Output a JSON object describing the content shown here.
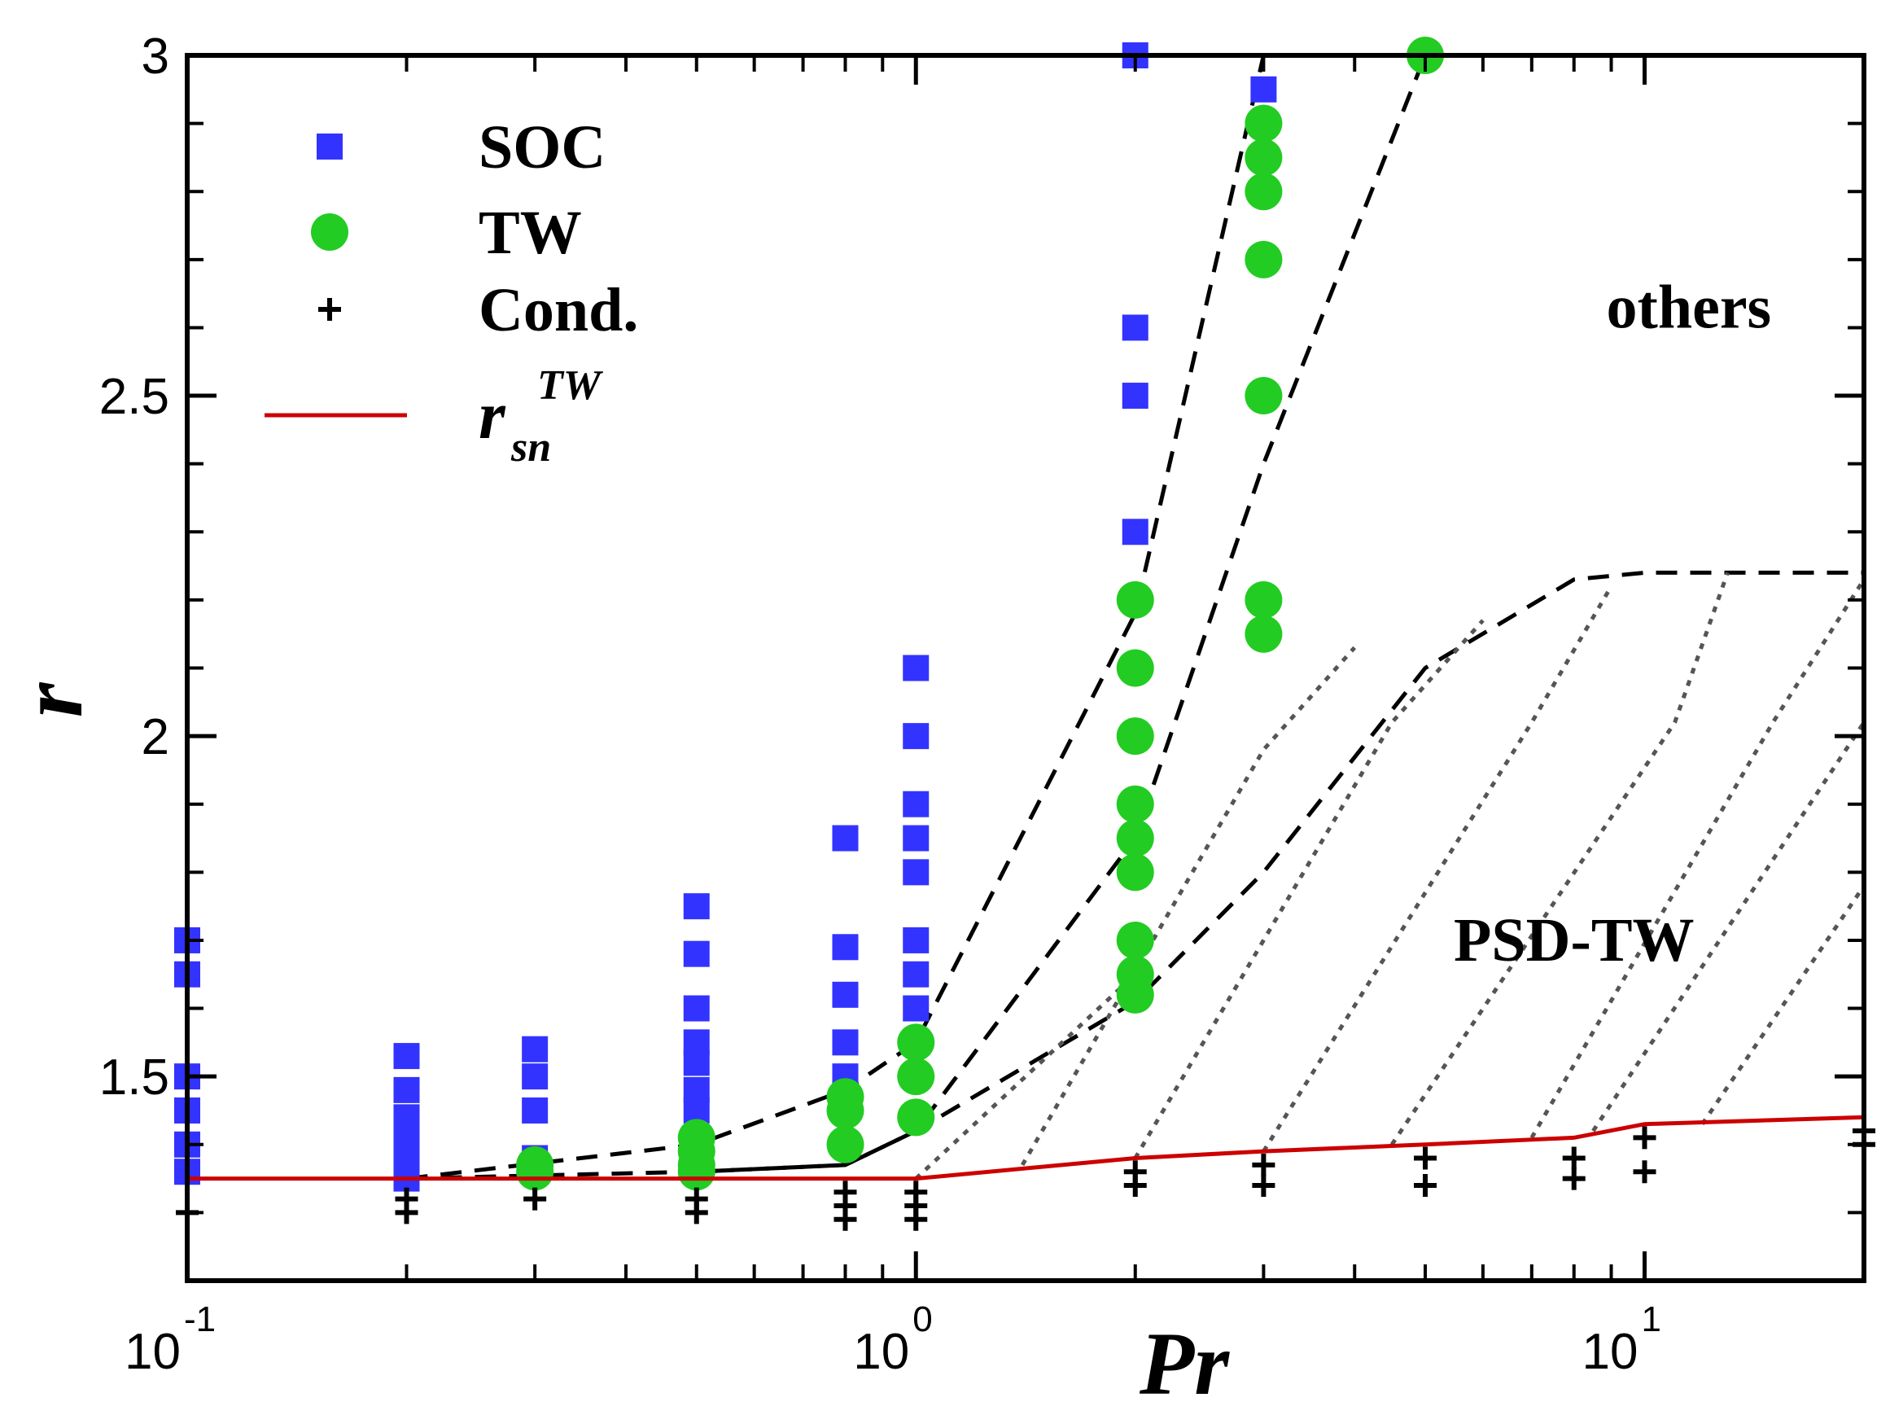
{
  "chart_data": {
    "type": "scatter",
    "title": "",
    "xlabel": "Pr",
    "ylabel": "r",
    "x_scale": "log",
    "xlim": [
      0.1,
      20
    ],
    "ylim": [
      1.2,
      3.0
    ],
    "x_ticks": [
      {
        "value": 0.1,
        "base": "10",
        "exp": "-1"
      },
      {
        "value": 1,
        "base": "10",
        "exp": "0"
      },
      {
        "value": 10,
        "base": "10",
        "exp": "1"
      }
    ],
    "y_ticks": [
      {
        "value": 1.5,
        "label": "1.5"
      },
      {
        "value": 2.0,
        "label": "2"
      },
      {
        "value": 2.5,
        "label": "2.5"
      },
      {
        "value": 3.0,
        "label": "3"
      }
    ],
    "y_minor_ticks": [
      1.3,
      1.4,
      1.6,
      1.7,
      1.8,
      1.9,
      2.1,
      2.2,
      2.3,
      2.4,
      2.6,
      2.7,
      2.8,
      2.9
    ],
    "x_minor_ticks": [
      0.2,
      0.3,
      0.4,
      0.5,
      0.6,
      0.7,
      0.8,
      0.9,
      2,
      3,
      4,
      5,
      6,
      7,
      8,
      9
    ],
    "grid": false,
    "legend_position": "top-left",
    "legend": [
      {
        "key": "soc",
        "label": "SOC",
        "marker": "square",
        "color": "#3333ff"
      },
      {
        "key": "tw",
        "label": "TW",
        "marker": "circle",
        "color": "#22cc22"
      },
      {
        "key": "cond",
        "label": "Cond.",
        "marker": "plus",
        "color": "#000000"
      },
      {
        "key": "rsn",
        "label_base": "r",
        "label_sub": "sn",
        "label_sup": "TW",
        "marker": "line",
        "color": "#cc0000"
      }
    ],
    "annotations": [
      {
        "text": "others",
        "x": 11.5,
        "y": 2.6
      },
      {
        "text": "PSD-TW",
        "x": 8.0,
        "y": 1.67
      }
    ],
    "series": [
      {
        "name": "SOC",
        "key": "soc",
        "marker": "square",
        "color": "#3333ff",
        "points": [
          [
            0.1,
            1.7
          ],
          [
            0.1,
            1.65
          ],
          [
            0.1,
            1.5
          ],
          [
            0.1,
            1.45
          ],
          [
            0.1,
            1.4
          ],
          [
            0.1,
            1.36
          ],
          [
            0.2,
            1.53
          ],
          [
            0.2,
            1.48
          ],
          [
            0.2,
            1.44
          ],
          [
            0.2,
            1.41
          ],
          [
            0.2,
            1.38
          ],
          [
            0.2,
            1.35
          ],
          [
            0.3,
            1.54
          ],
          [
            0.3,
            1.5
          ],
          [
            0.3,
            1.45
          ],
          [
            0.3,
            1.38
          ],
          [
            0.5,
            1.75
          ],
          [
            0.5,
            1.68
          ],
          [
            0.5,
            1.6
          ],
          [
            0.5,
            1.55
          ],
          [
            0.5,
            1.52
          ],
          [
            0.5,
            1.48
          ],
          [
            0.5,
            1.45
          ],
          [
            0.5,
            1.4
          ],
          [
            0.8,
            1.85
          ],
          [
            0.8,
            1.69
          ],
          [
            0.8,
            1.62
          ],
          [
            0.8,
            1.55
          ],
          [
            0.8,
            1.5
          ],
          [
            0.8,
            1.45
          ],
          [
            1.0,
            2.1
          ],
          [
            1.0,
            2.0
          ],
          [
            1.0,
            1.9
          ],
          [
            1.0,
            1.85
          ],
          [
            1.0,
            1.8
          ],
          [
            1.0,
            1.7
          ],
          [
            1.0,
            1.65
          ],
          [
            1.0,
            1.6
          ],
          [
            1.0,
            1.55
          ],
          [
            2.0,
            3.0
          ],
          [
            2.0,
            2.6
          ],
          [
            2.0,
            2.5
          ],
          [
            2.0,
            2.3
          ],
          [
            3.0,
            2.95
          ]
        ]
      },
      {
        "name": "TW",
        "key": "tw",
        "marker": "circle",
        "color": "#22cc22",
        "points": [
          [
            0.3,
            1.37
          ],
          [
            0.3,
            1.36
          ],
          [
            0.5,
            1.41
          ],
          [
            0.5,
            1.39
          ],
          [
            0.5,
            1.37
          ],
          [
            0.5,
            1.36
          ],
          [
            0.8,
            1.47
          ],
          [
            0.8,
            1.45
          ],
          [
            0.8,
            1.4
          ],
          [
            1.0,
            1.55
          ],
          [
            1.0,
            1.5
          ],
          [
            1.0,
            1.44
          ],
          [
            2.0,
            2.2
          ],
          [
            2.0,
            2.1
          ],
          [
            2.0,
            2.0
          ],
          [
            2.0,
            1.9
          ],
          [
            2.0,
            1.85
          ],
          [
            2.0,
            1.8
          ],
          [
            2.0,
            1.7
          ],
          [
            2.0,
            1.65
          ],
          [
            2.0,
            1.62
          ],
          [
            3.0,
            2.9
          ],
          [
            3.0,
            2.85
          ],
          [
            3.0,
            2.8
          ],
          [
            3.0,
            2.7
          ],
          [
            3.0,
            2.5
          ],
          [
            3.0,
            2.2
          ],
          [
            3.0,
            2.15
          ],
          [
            5.0,
            3.0
          ]
        ]
      },
      {
        "name": "Cond.",
        "key": "cond",
        "marker": "plus",
        "color": "#000000",
        "points": [
          [
            0.1,
            1.3
          ],
          [
            0.2,
            1.32
          ],
          [
            0.2,
            1.3
          ],
          [
            0.3,
            1.32
          ],
          [
            0.5,
            1.32
          ],
          [
            0.5,
            1.3
          ],
          [
            0.8,
            1.33
          ],
          [
            0.8,
            1.31
          ],
          [
            0.8,
            1.29
          ],
          [
            1.0,
            1.33
          ],
          [
            1.0,
            1.31
          ],
          [
            1.0,
            1.29
          ],
          [
            2.0,
            1.36
          ],
          [
            2.0,
            1.34
          ],
          [
            3.0,
            1.37
          ],
          [
            3.0,
            1.34
          ],
          [
            5.0,
            1.38
          ],
          [
            5.0,
            1.34
          ],
          [
            8.0,
            1.38
          ],
          [
            8.0,
            1.35
          ],
          [
            10.0,
            1.41
          ],
          [
            10.0,
            1.36
          ],
          [
            20.0,
            1.42
          ],
          [
            20.0,
            1.4
          ]
        ]
      },
      {
        "name": "r_sn^TW",
        "key": "rsn",
        "marker": "line",
        "color": "#cc0000",
        "points": [
          [
            0.1,
            1.35
          ],
          [
            1.0,
            1.35
          ],
          [
            2.0,
            1.38
          ],
          [
            3.0,
            1.39
          ],
          [
            5.0,
            1.4
          ],
          [
            8.0,
            1.41
          ],
          [
            10.0,
            1.43
          ],
          [
            20.0,
            1.44
          ]
        ]
      }
    ],
    "boundary_lines": [
      {
        "style": "dashed",
        "color": "#000000",
        "points": [
          [
            0.2,
            1.35
          ],
          [
            0.5,
            1.4
          ],
          [
            0.8,
            1.48
          ],
          [
            1.0,
            1.55
          ],
          [
            2.0,
            2.18
          ],
          [
            3.0,
            3.0
          ]
        ]
      },
      {
        "style": "dashed",
        "color": "#000000",
        "points": [
          [
            0.5,
            1.36
          ],
          [
            0.8,
            1.37
          ],
          [
            1.0,
            1.42
          ],
          [
            2.0,
            1.85
          ],
          [
            3.0,
            2.4
          ],
          [
            5.0,
            3.0
          ]
        ]
      },
      {
        "style": "dashed",
        "color": "#000000",
        "points": [
          [
            0.2,
            1.35
          ],
          [
            0.5,
            1.36
          ],
          [
            0.8,
            1.37
          ],
          [
            1.0,
            1.42
          ],
          [
            2.0,
            1.61
          ],
          [
            3.0,
            1.8
          ],
          [
            5.0,
            2.1
          ],
          [
            8.0,
            2.23
          ],
          [
            10.0,
            2.24
          ],
          [
            20.0,
            2.24
          ]
        ]
      },
      {
        "style": "dotted",
        "color": "#555555",
        "points": [
          [
            1.0,
            1.35
          ],
          [
            2.0,
            1.65
          ]
        ]
      },
      {
        "style": "dotted",
        "color": "#555555",
        "points": [
          [
            1.4,
            1.37
          ],
          [
            3.0,
            1.98
          ],
          [
            4.0,
            2.13
          ]
        ]
      },
      {
        "style": "dotted",
        "color": "#555555",
        "points": [
          [
            2.0,
            1.38
          ],
          [
            4.5,
            2.02
          ],
          [
            6.0,
            2.17
          ]
        ]
      },
      {
        "style": "dotted",
        "color": "#555555",
        "points": [
          [
            3.0,
            1.39
          ],
          [
            7.0,
            2.02
          ],
          [
            9.0,
            2.22
          ]
        ]
      },
      {
        "style": "dotted",
        "color": "#555555",
        "points": [
          [
            4.5,
            1.4
          ],
          [
            11.0,
            2.02
          ],
          [
            13.0,
            2.24
          ]
        ]
      },
      {
        "style": "dotted",
        "color": "#555555",
        "points": [
          [
            7.0,
            1.41
          ],
          [
            15.0,
            2.02
          ],
          [
            20.0,
            2.23
          ]
        ]
      },
      {
        "style": "dotted",
        "color": "#555555",
        "points": [
          [
            8.5,
            1.42
          ],
          [
            20.0,
            2.02
          ]
        ]
      },
      {
        "style": "dotted",
        "color": "#555555",
        "points": [
          [
            12.0,
            1.43
          ],
          [
            20.0,
            1.78
          ]
        ]
      }
    ]
  }
}
